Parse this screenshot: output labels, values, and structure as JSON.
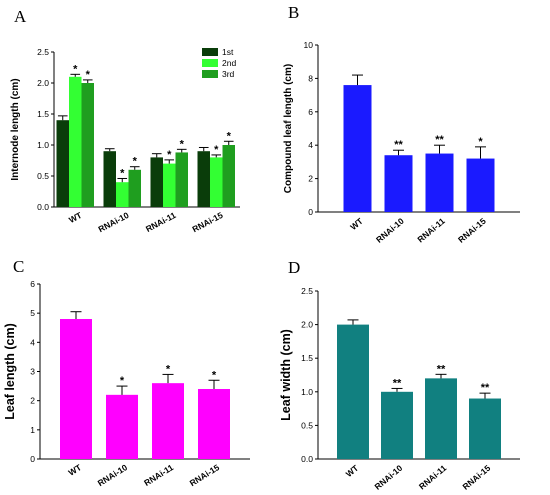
{
  "panels": [
    "A",
    "B",
    "C",
    "D"
  ],
  "chart_data": [
    {
      "panel": "A",
      "type": "bar",
      "title": "",
      "xlabel": "",
      "ylabel": "Internode length (cm)",
      "categories": [
        "WT",
        "RNAi-10",
        "RNAi-11",
        "RNAi-15"
      ],
      "series": [
        {
          "name": "1st",
          "color": "#0a3d0a",
          "values": [
            1.4,
            0.9,
            0.8,
            0.9
          ],
          "errors": [
            0.07,
            0.04,
            0.06,
            0.06
          ],
          "sig": [
            "",
            "",
            "",
            ""
          ]
        },
        {
          "name": "2nd",
          "color": "#33ff33",
          "values": [
            2.1,
            0.4,
            0.7,
            0.8
          ],
          "errors": [
            0.04,
            0.06,
            0.06,
            0.04
          ],
          "sig": [
            "*",
            "*",
            "*",
            "*"
          ]
        },
        {
          "name": "3rd",
          "color": "#1f9e1f",
          "values": [
            2.0,
            0.6,
            0.88,
            1.0
          ],
          "errors": [
            0.05,
            0.05,
            0.05,
            0.06
          ],
          "sig": [
            "*",
            "*",
            "*",
            "*"
          ]
        }
      ],
      "ylim": [
        0,
        2.5
      ],
      "yticks": [
        "0.0",
        "0.5",
        "1.0",
        "1.5",
        "2.0",
        "2.5"
      ],
      "legend_position": "top-right",
      "grid": false
    },
    {
      "panel": "B",
      "type": "bar",
      "title": "",
      "xlabel": "",
      "ylabel": "Compound leaf length (cm)",
      "categories": [
        "WT",
        "RNAi-10",
        "RNAi-11",
        "RNAi-15"
      ],
      "series": [
        {
          "color": "#1a1aff",
          "values": [
            7.6,
            3.4,
            3.5,
            3.2
          ],
          "errors": [
            0.6,
            0.3,
            0.5,
            0.7
          ],
          "sig": [
            "",
            "**",
            "**",
            "*"
          ]
        }
      ],
      "ylim": [
        0,
        10
      ],
      "yticks": [
        "0",
        "2",
        "4",
        "6",
        "8",
        "10"
      ],
      "grid": false
    },
    {
      "panel": "C",
      "type": "bar",
      "title": "",
      "xlabel": "",
      "ylabel": "Leaf length (cm)",
      "categories": [
        "WT",
        "RNAi-10",
        "RNAi-11",
        "RNAi-15"
      ],
      "series": [
        {
          "color": "#ff00ff",
          "values": [
            4.8,
            2.2,
            2.6,
            2.4
          ],
          "errors": [
            0.25,
            0.3,
            0.3,
            0.3
          ],
          "sig": [
            "",
            "*",
            "*",
            "*"
          ]
        }
      ],
      "ylim": [
        0,
        6
      ],
      "yticks": [
        "0",
        "1",
        "2",
        "3",
        "4",
        "5",
        "6"
      ],
      "grid": false
    },
    {
      "panel": "D",
      "type": "bar",
      "title": "",
      "xlabel": "",
      "ylabel": "Leaf width (cm)",
      "categories": [
        "WT",
        "RNAi-10",
        "RNAi-11",
        "RNAi-15"
      ],
      "series": [
        {
          "color": "#118080",
          "values": [
            2.0,
            1.0,
            1.2,
            0.9
          ],
          "errors": [
            0.07,
            0.05,
            0.06,
            0.08
          ],
          "sig": [
            "",
            "**",
            "**",
            "**"
          ]
        }
      ],
      "ylim": [
        0,
        2.5
      ],
      "yticks": [
        "0.0",
        "0.5",
        "1.0",
        "1.5",
        "2.0",
        "2.5"
      ],
      "grid": false
    }
  ]
}
